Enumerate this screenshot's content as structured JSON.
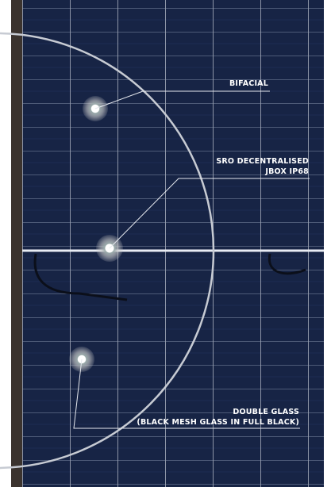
{
  "callouts": [
    {
      "lines": [
        "BIFACIAL"
      ]
    },
    {
      "lines": [
        "SRO DECENTRALISED",
        "JBOX IP68"
      ]
    },
    {
      "lines": [
        "DOUBLE GLASS",
        "(BLACK MESH GLASS IN FULL BLACK)"
      ]
    }
  ]
}
